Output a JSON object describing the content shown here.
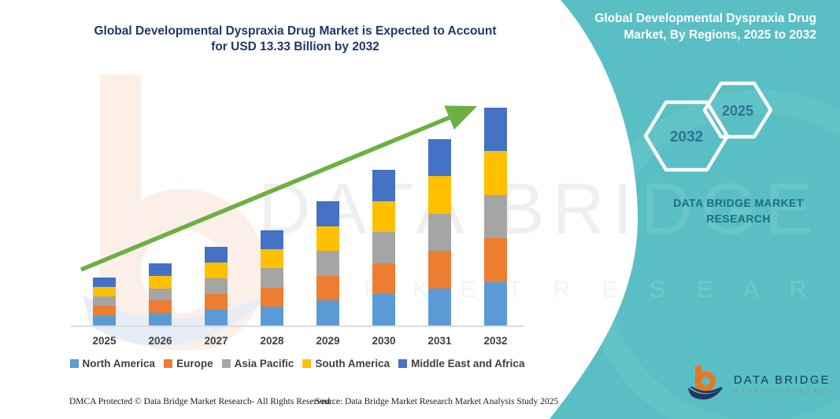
{
  "page": {
    "background": "#FFFFFF"
  },
  "main": {
    "title": "Global Developmental Dyspraxia Drug Market is Expected to Account for USD 13.33 Billion by 2032",
    "title_color": "#1F3864"
  },
  "chart_data": {
    "type": "bar",
    "subtype": "stacked",
    "title": "Global Developmental Dyspraxia Drug Market is Expected to Account for USD 13.33 Billion by 2032",
    "unit": "USD Billion",
    "categories": [
      "2025",
      "2026",
      "2027",
      "2028",
      "2029",
      "2030",
      "2031",
      "2032"
    ],
    "totals": [
      2.95,
      3.8,
      4.81,
      5.82,
      7.6,
      9.53,
      11.41,
      13.33
    ],
    "series": [
      {
        "name": "North America",
        "color": "#5B9BD5",
        "values": [
          0.59,
          0.76,
          0.962,
          1.164,
          1.52,
          1.906,
          2.282,
          2.666
        ]
      },
      {
        "name": "Europe",
        "color": "#ED7D31",
        "values": [
          0.59,
          0.76,
          0.962,
          1.164,
          1.52,
          1.906,
          2.282,
          2.666
        ]
      },
      {
        "name": "Asia Pacific",
        "color": "#A5A5A5",
        "values": [
          0.59,
          0.76,
          0.962,
          1.164,
          1.52,
          1.906,
          2.282,
          2.666
        ]
      },
      {
        "name": "South America",
        "color": "#FFC000",
        "values": [
          0.59,
          0.76,
          0.962,
          1.164,
          1.52,
          1.906,
          2.282,
          2.666
        ]
      },
      {
        "name": "Middle East and Africa",
        "color": "#4472C4",
        "values": [
          0.59,
          0.76,
          0.962,
          1.164,
          1.52,
          1.906,
          2.282,
          2.666
        ]
      }
    ],
    "stack_order": "bottom_to_top",
    "legend_position": "bottom",
    "xlabel": "",
    "ylabel": "",
    "ylim": [
      0,
      14
    ],
    "gridlines": false,
    "annotations": [
      {
        "type": "trend_arrow",
        "color": "#6CB043",
        "direction": "up-right"
      }
    ]
  },
  "side_panel": {
    "background": "#59BFC4",
    "title": "Global Developmental Dyspraxia Drug Market, By Regions, 2025 to 2032",
    "title_color": "#FFFFFF",
    "hexagons": [
      {
        "label": "2032"
      },
      {
        "label": "2025"
      }
    ],
    "hexagon_label_color": "#2E7493",
    "brand_text": "DATA BRIDGE MARKET RESEARCH",
    "brand_text_color": "#1C6E80"
  },
  "watermark": {
    "logo": "data-bridge-b-watermark",
    "line1": "DATA BRIDGE",
    "line2": "M A R K E T   R E S E A R C H"
  },
  "logo": {
    "title": "DATA BRIDGE",
    "subtitle": "MARKET RESEARCH",
    "navy": "#1F3864",
    "orange": "#E87724",
    "gray": "#8B9097"
  },
  "footer": {
    "dmca": "DMCA Protected © Data Bridge Market Research-  All Rights Reserved.",
    "source": "Source: Data Bridge Market Research  Market Analysis Study 2025"
  }
}
